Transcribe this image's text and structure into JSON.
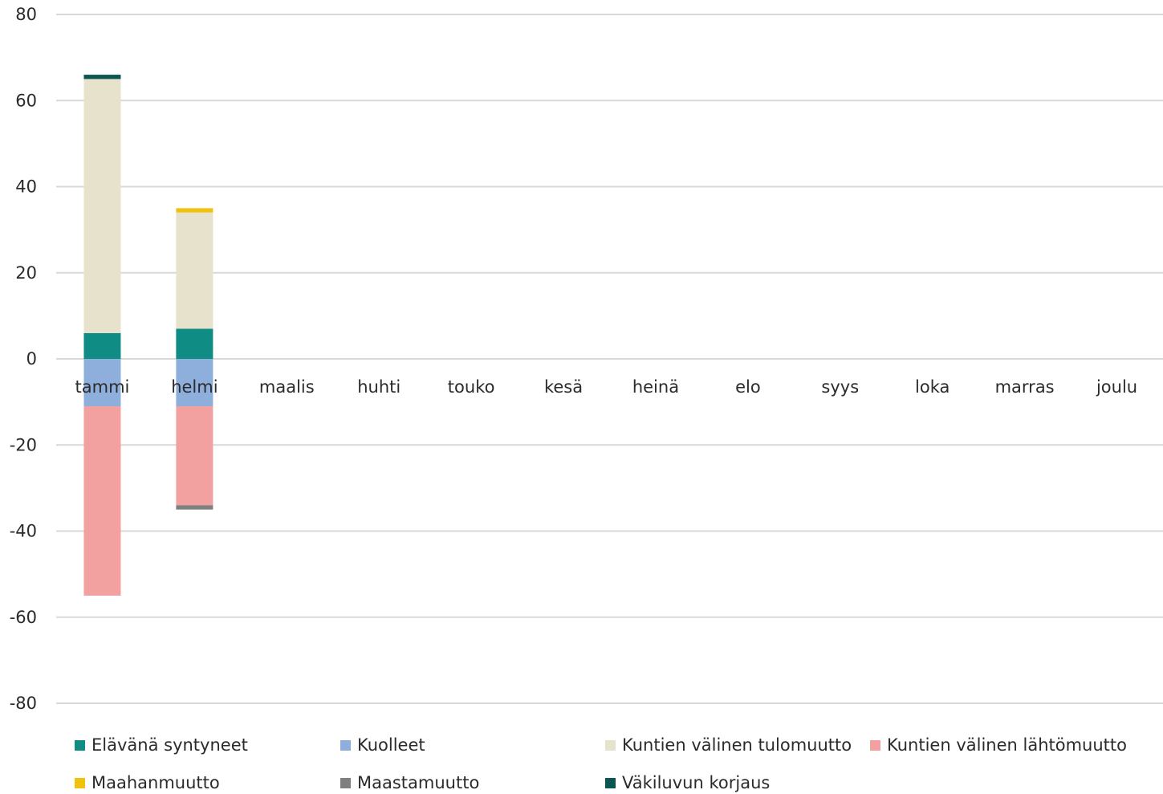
{
  "chart_data": {
    "type": "bar",
    "stacked": true,
    "title": "",
    "xlabel": "",
    "ylabel": "",
    "ylim": [
      -80,
      80
    ],
    "yticks": [
      80,
      60,
      40,
      20,
      0,
      -20,
      -40,
      -60,
      -80
    ],
    "categories": [
      "tammi",
      "helmi",
      "maalis",
      "huhti",
      "touko",
      "kesä",
      "heinä",
      "elo",
      "syys",
      "loka",
      "marras",
      "joulu"
    ],
    "grid": true,
    "legend_position": "bottom",
    "series": [
      {
        "name": "Elävänä syntyneet",
        "color": "#0f8c84",
        "values": [
          6,
          7,
          null,
          null,
          null,
          null,
          null,
          null,
          null,
          null,
          null,
          null
        ]
      },
      {
        "name": "Kuolleet",
        "color": "#8eaedc",
        "values": [
          -11,
          -11,
          null,
          null,
          null,
          null,
          null,
          null,
          null,
          null,
          null,
          null
        ]
      },
      {
        "name": "Kuntien välinen tulomuutto",
        "color": "#e7e2cc",
        "values": [
          59,
          27,
          null,
          null,
          null,
          null,
          null,
          null,
          null,
          null,
          null,
          null
        ]
      },
      {
        "name": "Kuntien välinen lähtömuutto",
        "color": "#f3a0a0",
        "values": [
          -44,
          -23,
          null,
          null,
          null,
          null,
          null,
          null,
          null,
          null,
          null,
          null
        ]
      },
      {
        "name": "Maahanmuutto",
        "color": "#f0c20e",
        "values": [
          0,
          1,
          null,
          null,
          null,
          null,
          null,
          null,
          null,
          null,
          null,
          null
        ]
      },
      {
        "name": "Maastamuutto",
        "color": "#7f7f7f",
        "values": [
          0,
          -1,
          null,
          null,
          null,
          null,
          null,
          null,
          null,
          null,
          null,
          null
        ]
      },
      {
        "name": "Väkiluvun korjaus",
        "color": "#0c5652",
        "values": [
          1,
          0,
          null,
          null,
          null,
          null,
          null,
          null,
          null,
          null,
          null,
          null
        ]
      }
    ]
  }
}
